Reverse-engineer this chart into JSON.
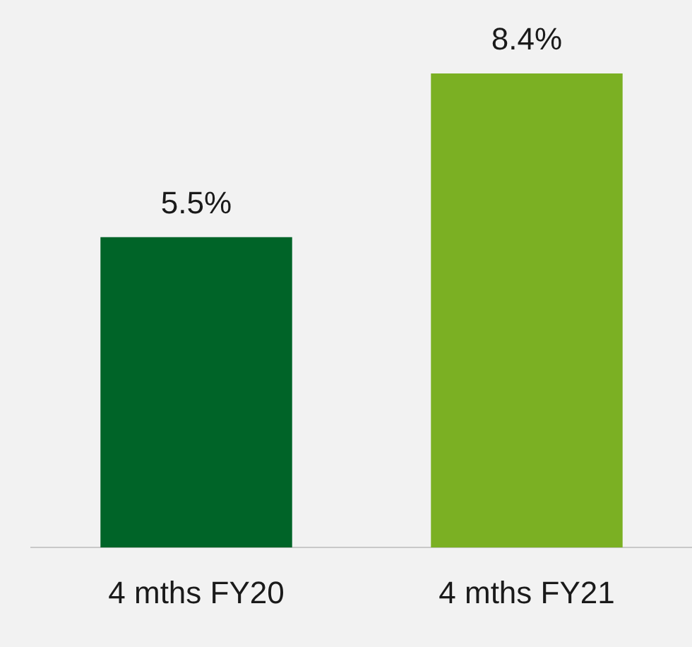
{
  "chart_data": {
    "type": "bar",
    "categories": [
      "4 mths FY20",
      "4 mths FY21"
    ],
    "values": [
      5.5,
      8.4
    ],
    "colors": [
      "#006428",
      "#7bb023"
    ],
    "value_labels": [
      "5.5%",
      "8.4%"
    ],
    "tick_labels": "x",
    "grid": false,
    "legend": false
  }
}
